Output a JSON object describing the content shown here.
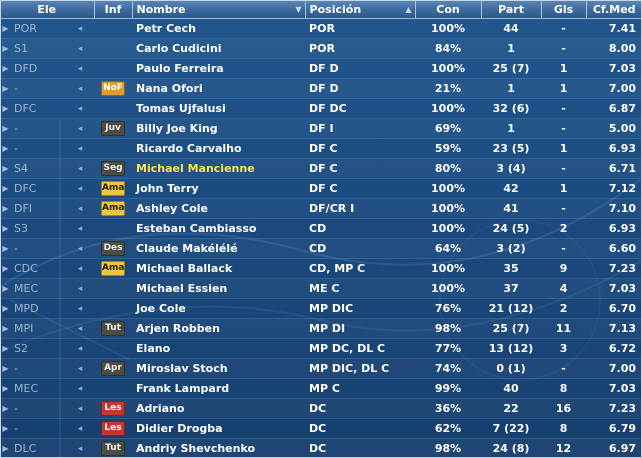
{
  "headers": {
    "ele": "Ele",
    "inf": "Inf",
    "nombre": "Nombre",
    "posicion": "Posición",
    "con": "Con",
    "part": "Part",
    "gls": "Gls",
    "cfmed": "Cf.Med"
  },
  "header_icons": {
    "nombre_sort": "sort-down-icon",
    "posicion_sort": "sort-up-icon"
  },
  "badge_colors": {
    "NoF": "#e09b2d",
    "Ama": "#f0c63a",
    "Juv": "#4b4c44",
    "Seg": "#4b4c44",
    "Des": "#4b4c44",
    "Tut": "#4b4c44",
    "Apr": "#4b4c44",
    "Les": "#c8352f"
  },
  "highlight_color": "#ffe14a",
  "players": [
    {
      "ele": "POR",
      "inf": "",
      "name": "Petr Cech",
      "pos": "POR",
      "con": "100%",
      "part": "44",
      "gls": "-",
      "cf": "7.41",
      "hl": false
    },
    {
      "ele": "S1",
      "inf": "",
      "name": "Carlo Cudicini",
      "pos": "POR",
      "con": "84%",
      "part": "1",
      "gls": "-",
      "cf": "8.00",
      "hl": false
    },
    {
      "ele": "DFD",
      "inf": "",
      "name": "Paulo Ferreira",
      "pos": "DF D",
      "con": "100%",
      "part": "25 (7)",
      "gls": "1",
      "cf": "7.03",
      "hl": false
    },
    {
      "ele": "-",
      "inf": "NoF",
      "name": "Nana Ofori",
      "pos": "DF D",
      "con": "21%",
      "part": "1",
      "gls": "1",
      "cf": "7.00",
      "hl": false
    },
    {
      "ele": "DFC",
      "inf": "",
      "name": "Tomas Ujfalusi",
      "pos": "DF DC",
      "con": "100%",
      "part": "32 (6)",
      "gls": "-",
      "cf": "6.87",
      "hl": false
    },
    {
      "ele": "-",
      "inf": "Juv",
      "name": "Billy Joe King",
      "pos": "DF I",
      "con": "69%",
      "part": "1",
      "gls": "-",
      "cf": "5.00",
      "hl": false
    },
    {
      "ele": "-",
      "inf": "",
      "name": "Ricardo Carvalho",
      "pos": "DF C",
      "con": "59%",
      "part": "23 (5)",
      "gls": "1",
      "cf": "6.93",
      "hl": false
    },
    {
      "ele": "S4",
      "inf": "Seg",
      "name": "Michael Mancienne",
      "pos": "DF C",
      "con": "80%",
      "part": "3 (4)",
      "gls": "-",
      "cf": "6.71",
      "hl": true
    },
    {
      "ele": "DFC",
      "inf": "Ama",
      "name": "John Terry",
      "pos": "DF C",
      "con": "100%",
      "part": "42",
      "gls": "1",
      "cf": "7.12",
      "hl": false
    },
    {
      "ele": "DFI",
      "inf": "Ama",
      "name": "Ashley Cole",
      "pos": "DF/CR I",
      "con": "100%",
      "part": "41",
      "gls": "-",
      "cf": "7.10",
      "hl": false
    },
    {
      "ele": "S3",
      "inf": "",
      "name": "Esteban Cambiasso",
      "pos": "CD",
      "con": "100%",
      "part": "24 (5)",
      "gls": "2",
      "cf": "6.93",
      "hl": false
    },
    {
      "ele": "-",
      "inf": "Des",
      "name": "Claude Makélélé",
      "pos": "CD",
      "con": "64%",
      "part": "3 (2)",
      "gls": "-",
      "cf": "6.60",
      "hl": false
    },
    {
      "ele": "CDC",
      "inf": "Ama",
      "name": "Michael Ballack",
      "pos": "CD, MP C",
      "con": "100%",
      "part": "35",
      "gls": "9",
      "cf": "7.23",
      "hl": false
    },
    {
      "ele": "MEC",
      "inf": "",
      "name": "Michael Essien",
      "pos": "ME C",
      "con": "100%",
      "part": "37",
      "gls": "4",
      "cf": "7.03",
      "hl": false
    },
    {
      "ele": "MPD",
      "inf": "",
      "name": "Joe Cole",
      "pos": "MP DIC",
      "con": "76%",
      "part": "21 (12)",
      "gls": "2",
      "cf": "6.70",
      "hl": false
    },
    {
      "ele": "MPI",
      "inf": "Tut",
      "name": "Arjen Robben",
      "pos": "MP DI",
      "con": "98%",
      "part": "25 (7)",
      "gls": "11",
      "cf": "7.13",
      "hl": false
    },
    {
      "ele": "S2",
      "inf": "",
      "name": "Elano",
      "pos": "MP DC, DL C",
      "con": "77%",
      "part": "13 (12)",
      "gls": "3",
      "cf": "6.72",
      "hl": false
    },
    {
      "ele": "-",
      "inf": "Apr",
      "name": "Miroslav Stoch",
      "pos": "MP DIC, DL C",
      "con": "74%",
      "part": "0 (1)",
      "gls": "-",
      "cf": "7.00",
      "hl": false
    },
    {
      "ele": "MEC",
      "inf": "",
      "name": "Frank Lampard",
      "pos": "MP C",
      "con": "99%",
      "part": "40",
      "gls": "8",
      "cf": "7.03",
      "hl": false
    },
    {
      "ele": "-",
      "inf": "Les",
      "name": "Adriano",
      "pos": "DC",
      "con": "36%",
      "part": "22",
      "gls": "16",
      "cf": "7.23",
      "hl": false
    },
    {
      "ele": "-",
      "inf": "Les",
      "name": "Didier Drogba",
      "pos": "DC",
      "con": "62%",
      "part": "7 (22)",
      "gls": "8",
      "cf": "6.79",
      "hl": false
    },
    {
      "ele": "DLC",
      "inf": "Tut",
      "name": "Andriy Shevchenko",
      "pos": "DC",
      "con": "98%",
      "part": "24 (8)",
      "gls": "12",
      "cf": "6.97",
      "hl": false
    }
  ]
}
